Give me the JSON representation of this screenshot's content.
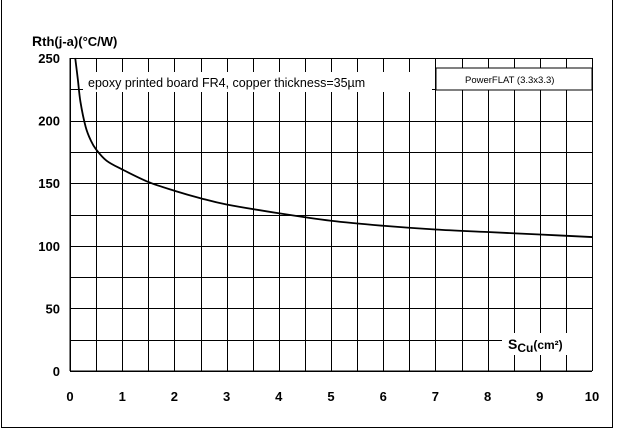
{
  "chart_data": {
    "type": "line",
    "title": "",
    "ylabel_main": "R",
    "ylabel_sub": "th(j-a)",
    "ylabel_unit": "(°C/W)",
    "xlabel_main": "S",
    "xlabel_sub": "Cu",
    "xlabel_unit": "(cm²)",
    "annotation_main": "epoxy printed board FR4, copper thickness=35µm",
    "annotation_package": "PowerFLAT (3.3x3.3)",
    "xlim": [
      0,
      10
    ],
    "ylim": [
      0,
      250
    ],
    "x_ticks": [
      "0",
      "1",
      "2",
      "3",
      "4",
      "5",
      "6",
      "7",
      "8",
      "9",
      "10"
    ],
    "y_ticks": [
      "0",
      "50",
      "100",
      "150",
      "200",
      "250"
    ],
    "x_grid_step": 0.5,
    "y_grid_step": 25,
    "grid": true,
    "series": [
      {
        "x": [
          0.1,
          0.15,
          0.2,
          0.3,
          0.4,
          0.5,
          0.7,
          1,
          1.5,
          2,
          2.5,
          3,
          4,
          5,
          6,
          7,
          8,
          9,
          10
        ],
        "values": [
          250,
          233,
          215,
          195,
          184,
          177,
          168,
          161,
          151,
          144,
          138,
          133,
          126,
          120,
          116,
          113,
          111,
          109,
          107
        ]
      }
    ]
  }
}
